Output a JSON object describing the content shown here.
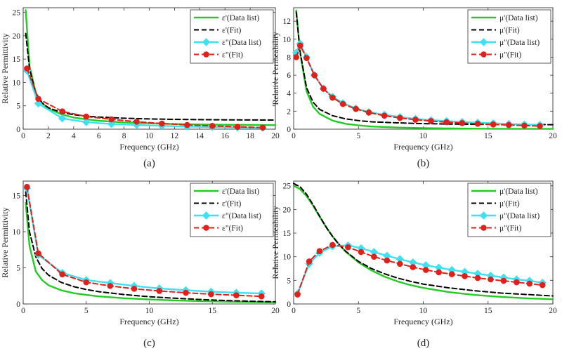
{
  "figure": {
    "background": "#ffffff"
  },
  "styles": {
    "data_real": {
      "color": "#22cc22",
      "dash": "",
      "marker": "none",
      "width": 2.4
    },
    "fit_real": {
      "color": "#000000",
      "dash": "7,4",
      "marker": "none",
      "width": 2.0
    },
    "data_imag": {
      "color": "#40e0f0",
      "dash": "",
      "marker": "diamond",
      "width": 2.4
    },
    "fit_imag": {
      "color": "#e0201a",
      "dash": "7,4",
      "marker": "circle",
      "width": 2.0
    }
  },
  "chart_data": [
    {
      "type": "line",
      "panel_label": "(a)",
      "xlabel": "Frequency (GHz)",
      "ylabel": "Relative Permittivity",
      "xlim": [
        0,
        20
      ],
      "ylim": [
        0,
        26
      ],
      "xticks": [
        0,
        2,
        4,
        6,
        8,
        10,
        12,
        14,
        16,
        18,
        20
      ],
      "yticks": [
        0,
        5,
        10,
        15,
        20,
        25
      ],
      "legend_position": "top-right",
      "series": [
        {
          "name": "ε'(Data list)",
          "style": "data_real",
          "x": [
            0.2,
            0.5,
            1,
            1.5,
            2,
            3,
            4,
            5,
            6,
            8,
            10,
            12,
            14,
            16,
            18,
            20
          ],
          "y": [
            25.5,
            13.5,
            7.8,
            5.6,
            4.4,
            3.2,
            2.5,
            2.1,
            1.8,
            1.45,
            1.25,
            1.1,
            1.0,
            0.95,
            0.9,
            0.85
          ]
        },
        {
          "name": "ε'(Fit)",
          "style": "fit_real",
          "x": [
            0.2,
            0.5,
            1,
            1.5,
            2,
            3,
            4,
            5,
            6,
            8,
            10,
            12,
            14,
            16,
            18,
            20
          ],
          "y": [
            20.5,
            13.0,
            7.5,
            5.6,
            4.6,
            3.6,
            3.1,
            2.8,
            2.6,
            2.35,
            2.2,
            2.1,
            2.05,
            2.0,
            1.97,
            1.95
          ]
        },
        {
          "name": "ε\"(Data list)",
          "style": "data_imag",
          "x": [
            0.3,
            1.2,
            3.1,
            5.0,
            7.0,
            9.0,
            11.0,
            13.0,
            15.0,
            17.0,
            19.0
          ],
          "y": [
            12.5,
            5.5,
            2.3,
            1.5,
            1.1,
            0.9,
            0.7,
            0.55,
            0.45,
            0.35,
            0.3
          ]
        },
        {
          "name": "ε\"(Fit)",
          "style": "fit_imag",
          "x": [
            0.3,
            1.2,
            3.1,
            5.0,
            7.0,
            9.0,
            11.0,
            13.0,
            15.0,
            17.0,
            19.0
          ],
          "y": [
            13.0,
            6.5,
            3.8,
            2.7,
            2.1,
            1.6,
            1.2,
            0.9,
            0.7,
            0.5,
            0.35
          ]
        }
      ]
    },
    {
      "type": "line",
      "panel_label": "(b)",
      "xlabel": "Frequency (GHz)",
      "ylabel": "Relative Permeability",
      "xlim": [
        0,
        20
      ],
      "ylim": [
        0,
        13.5
      ],
      "xticks": [
        0,
        5,
        10,
        15,
        20
      ],
      "yticks": [
        0,
        2,
        4,
        6,
        8,
        10,
        12
      ],
      "legend_position": "top-right",
      "series": [
        {
          "name": "μ'(Data list)",
          "style": "data_real",
          "x": [
            0.2,
            0.5,
            1,
            1.5,
            2,
            3,
            4,
            5,
            6,
            8,
            10,
            12,
            15,
            20
          ],
          "y": [
            13.2,
            8.5,
            4.2,
            2.5,
            1.7,
            0.95,
            0.6,
            0.42,
            0.3,
            0.18,
            0.12,
            0.08,
            0.05,
            0.03
          ]
        },
        {
          "name": "μ'(Fit)",
          "style": "fit_real",
          "x": [
            0.2,
            0.5,
            1,
            1.5,
            2,
            3,
            4,
            5,
            6,
            8,
            10,
            12,
            15,
            20
          ],
          "y": [
            13.0,
            8.6,
            4.6,
            3.0,
            2.2,
            1.5,
            1.15,
            0.95,
            0.82,
            0.7,
            0.62,
            0.57,
            0.53,
            0.5
          ]
        },
        {
          "name": "μ\"(Data list)",
          "style": "data_imag",
          "x": [
            0.2,
            0.5,
            1.0,
            1.6,
            2.3,
            3.0,
            3.8,
            4.8,
            5.8,
            7.0,
            8.2,
            9.4,
            10.6,
            11.8,
            13.0,
            14.2,
            15.4,
            16.6,
            17.8,
            19.0
          ],
          "y": [
            8.5,
            9.5,
            8.0,
            6.0,
            4.5,
            3.6,
            2.9,
            2.3,
            1.9,
            1.6,
            1.35,
            1.15,
            1.0,
            0.9,
            0.8,
            0.72,
            0.65,
            0.58,
            0.52,
            0.48
          ]
        },
        {
          "name": "μ\"(Fit)",
          "style": "fit_imag",
          "x": [
            0.2,
            0.5,
            1.0,
            1.6,
            2.3,
            3.0,
            3.8,
            4.8,
            5.8,
            7.0,
            8.2,
            9.4,
            10.6,
            11.8,
            13.0,
            14.2,
            15.4,
            16.6,
            17.8,
            19.0
          ],
          "y": [
            8.0,
            9.3,
            7.9,
            6.0,
            4.5,
            3.5,
            2.8,
            2.25,
            1.85,
            1.5,
            1.25,
            1.05,
            0.9,
            0.78,
            0.68,
            0.6,
            0.52,
            0.46,
            0.4,
            0.35
          ]
        }
      ]
    },
    {
      "type": "line",
      "panel_label": "(c)",
      "xlabel": "Frequency (GHz)",
      "ylabel": "Relative Permittivity",
      "xlim": [
        0,
        20
      ],
      "ylim": [
        0,
        17
      ],
      "xticks": [
        0,
        5,
        10,
        15,
        20
      ],
      "yticks": [
        0,
        5,
        10,
        15
      ],
      "legend_position": "top-right",
      "series": [
        {
          "name": "ε'(Data list)",
          "style": "data_real",
          "x": [
            0.2,
            0.5,
            1,
            1.5,
            2,
            3,
            4,
            5,
            6,
            8,
            10,
            12,
            14,
            16,
            18,
            20
          ],
          "y": [
            14.0,
            8.0,
            4.5,
            3.3,
            2.6,
            1.9,
            1.5,
            1.25,
            1.05,
            0.8,
            0.62,
            0.5,
            0.4,
            0.32,
            0.26,
            0.22
          ]
        },
        {
          "name": "ε'(Fit)",
          "style": "fit_real",
          "x": [
            0.2,
            0.5,
            1,
            1.5,
            2,
            3,
            4,
            5,
            6,
            8,
            10,
            12,
            14,
            16,
            18,
            20
          ],
          "y": [
            15.5,
            10.0,
            6.5,
            4.9,
            4.0,
            3.0,
            2.4,
            2.0,
            1.7,
            1.3,
            1.0,
            0.8,
            0.62,
            0.48,
            0.38,
            0.3
          ]
        },
        {
          "name": "ε\"(Data list)",
          "style": "data_imag",
          "x": [
            0.3,
            1.2,
            3.1,
            5.0,
            6.9,
            8.8,
            10.8,
            12.9,
            14.9,
            16.9,
            18.9
          ],
          "y": [
            16.0,
            6.8,
            4.3,
            3.3,
            2.9,
            2.5,
            2.15,
            1.9,
            1.7,
            1.55,
            1.45
          ]
        },
        {
          "name": "ε\"(Fit)",
          "style": "fit_imag",
          "x": [
            0.3,
            1.2,
            3.1,
            5.0,
            6.9,
            8.8,
            10.8,
            12.9,
            14.9,
            16.9,
            18.9
          ],
          "y": [
            16.2,
            7.0,
            4.1,
            3.0,
            2.5,
            2.1,
            1.8,
            1.55,
            1.35,
            1.2,
            1.05
          ]
        }
      ]
    },
    {
      "type": "line",
      "panel_label": "(d)",
      "xlabel": "Frequency (GHz)",
      "ylabel": "Relative Permeability",
      "xlim": [
        0,
        20
      ],
      "ylim": [
        0,
        26
      ],
      "xticks": [
        0,
        5,
        10,
        15,
        20
      ],
      "yticks": [
        0,
        5,
        10,
        15,
        20,
        25
      ],
      "legend_position": "top-right",
      "series": [
        {
          "name": "μ'(Data list)",
          "style": "data_real",
          "x": [
            0,
            0.5,
            1,
            1.5,
            2,
            2.5,
            3,
            3.5,
            4,
            5,
            6,
            7,
            8,
            9,
            10,
            12,
            14,
            16,
            18,
            20
          ],
          "y": [
            25.0,
            24.3,
            22.8,
            20.8,
            18.5,
            16.3,
            14.3,
            12.6,
            11.1,
            8.8,
            7.1,
            5.8,
            4.8,
            4.0,
            3.4,
            2.5,
            1.9,
            1.5,
            1.2,
            1.0
          ]
        },
        {
          "name": "μ'(Fit)",
          "style": "fit_real",
          "x": [
            0,
            0.5,
            1,
            1.5,
            2,
            2.5,
            3,
            3.5,
            4,
            5,
            6,
            7,
            8,
            9,
            10,
            12,
            14,
            16,
            18,
            20
          ],
          "y": [
            25.5,
            24.8,
            23.2,
            21.0,
            18.6,
            16.3,
            14.3,
            12.6,
            11.2,
            9.0,
            7.5,
            6.4,
            5.5,
            4.8,
            4.2,
            3.4,
            2.8,
            2.3,
            2.0,
            1.7
          ]
        },
        {
          "name": "μ\"(Data list)",
          "style": "data_imag",
          "x": [
            0.3,
            1.2,
            2.0,
            3.0,
            4.2,
            5.2,
            6.2,
            7.2,
            8.2,
            9.2,
            10.2,
            11.2,
            12.2,
            13.2,
            14.2,
            15.2,
            16.2,
            17.2,
            18.2,
            19.2
          ],
          "y": [
            2.2,
            8.5,
            10.8,
            12.2,
            12.4,
            11.8,
            11.0,
            10.2,
            9.5,
            8.8,
            8.2,
            7.7,
            7.2,
            6.8,
            6.4,
            6.0,
            5.6,
            5.2,
            4.9,
            4.5
          ]
        },
        {
          "name": "μ\"(Fit)",
          "style": "fit_imag",
          "x": [
            0.3,
            1.2,
            2.0,
            3.0,
            4.2,
            5.2,
            6.2,
            7.2,
            8.2,
            9.2,
            10.2,
            11.2,
            12.2,
            13.2,
            14.2,
            15.2,
            16.2,
            17.2,
            18.2,
            19.2
          ],
          "y": [
            2.0,
            9.0,
            11.2,
            12.5,
            12.0,
            11.0,
            10.0,
            9.2,
            8.5,
            7.8,
            7.2,
            6.7,
            6.3,
            5.9,
            5.5,
            5.2,
            4.9,
            4.6,
            4.3,
            4.0
          ]
        }
      ]
    }
  ]
}
